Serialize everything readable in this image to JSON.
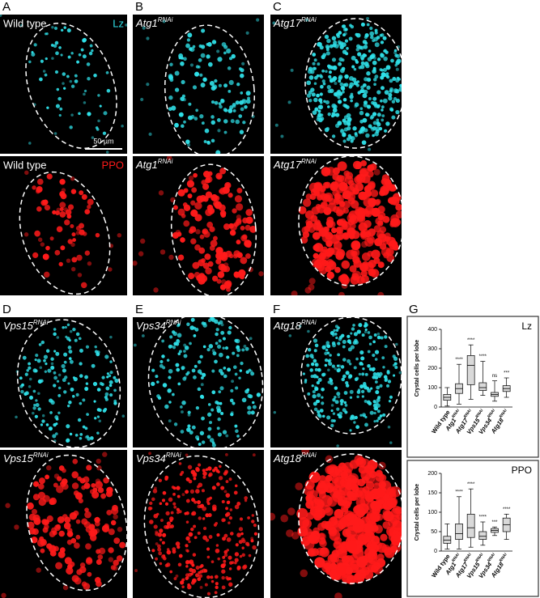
{
  "panels": [
    {
      "letter": "A",
      "images": [
        {
          "label": "Wild type",
          "stain": "Lz",
          "scale_bar": "50 µm"
        },
        {
          "label": "Wild type",
          "stain": "PPO"
        }
      ]
    },
    {
      "letter": "B",
      "images": [
        {
          "gene": "Atg1",
          "sup": "RNAi"
        },
        {
          "gene": "Atg1",
          "sup": "RNAi"
        }
      ]
    },
    {
      "letter": "C",
      "images": [
        {
          "gene": "Atg17",
          "sup": "RNAi"
        },
        {
          "gene": "Atg17",
          "sup": "RNAi"
        }
      ]
    },
    {
      "letter": "D",
      "images": [
        {
          "gene": "Vps15",
          "sup": "RNAi"
        },
        {
          "gene": "Vps15",
          "sup": "RNAi"
        }
      ]
    },
    {
      "letter": "E",
      "images": [
        {
          "gene": "Vps34",
          "sup": "RNAi"
        },
        {
          "gene": "Vps34",
          "sup": "RNAi"
        }
      ]
    },
    {
      "letter": "F",
      "images": [
        {
          "gene": "Atg18",
          "sup": "RNAi"
        },
        {
          "gene": "Atg18",
          "sup": "RNAi"
        }
      ]
    }
  ],
  "chart_letter": "G",
  "chart_data": [
    {
      "type": "box",
      "title": "Lz",
      "y_label": "Crystal cells per lobe",
      "categories": [
        "Wild type",
        "Atg1",
        "Atg17",
        "Vps15",
        "Vps34",
        "Atg18"
      ],
      "category_superscripts": [
        null,
        "RNAi",
        "RNAi",
        "RNAi",
        "RNAi",
        "RNAi"
      ],
      "min": [
        5,
        15,
        40,
        60,
        30,
        50
      ],
      "q1": [
        35,
        70,
        115,
        85,
        55,
        80
      ],
      "median": [
        50,
        95,
        215,
        100,
        65,
        95
      ],
      "q3": [
        65,
        120,
        265,
        125,
        75,
        110
      ],
      "max": [
        100,
        220,
        320,
        235,
        135,
        150
      ],
      "annotations": [
        null,
        "****",
        "****",
        "****",
        "ns",
        "***"
      ],
      "color": "#d9d9d9",
      "ylim": [
        0,
        400
      ],
      "yticks": [
        0,
        100,
        200,
        300,
        400
      ]
    },
    {
      "type": "box",
      "title": "PPO",
      "y_label": "Crystal cells per lobe",
      "categories": [
        "Wild type",
        "Atg1",
        "Atg17",
        "Vps15",
        "Vps34",
        "Atg18"
      ],
      "category_superscripts": [
        null,
        "RNAi",
        "RNAi",
        "RNAi",
        "RNAi",
        "RNAi"
      ],
      "min": [
        5,
        5,
        10,
        15,
        40,
        30
      ],
      "q1": [
        20,
        30,
        35,
        30,
        48,
        50
      ],
      "median": [
        28,
        45,
        60,
        38,
        53,
        68
      ],
      "q3": [
        38,
        70,
        95,
        50,
        58,
        85
      ],
      "max": [
        70,
        140,
        160,
        75,
        62,
        95
      ],
      "annotations": [
        null,
        "****",
        "****",
        "****",
        "***",
        "****"
      ],
      "color": "#d9d9d9",
      "ylim": [
        0,
        200
      ],
      "yticks": [
        0,
        50,
        100,
        150,
        200
      ]
    }
  ]
}
